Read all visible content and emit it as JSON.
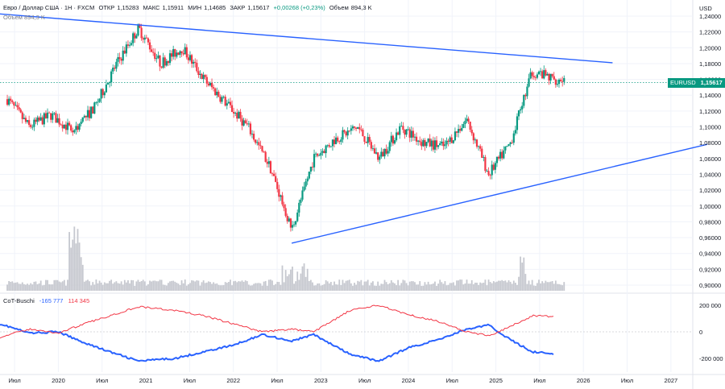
{
  "header": {
    "symbol": "Евро / Доллар США · 1Н · FXCM",
    "open_label": "ОТКР",
    "open": "1,15283",
    "high_label": "МАКС",
    "high": "1,15911",
    "low_label": "МИН",
    "low": "1,14685",
    "close_label": "ЗАКР",
    "close": "1,15617",
    "change": "+0,00268 (+0,23%)",
    "volume_label": "Объем",
    "volume": "894,3 K",
    "volume_sub_label": "Объем",
    "volume_sub": "894,3 K"
  },
  "price_axis": {
    "currency": "USD",
    "ticks": [
      "1,24000",
      "1,22000",
      "1,20000",
      "1,18000",
      "1,16000",
      "1,14000",
      "1,12000",
      "1,10000",
      "1,08000",
      "1,06000",
      "1,04000",
      "1,02000",
      "1,00000",
      "0,98000",
      "0,96000",
      "0,94000",
      "0,92000",
      "0,90000"
    ]
  },
  "price_tag": {
    "symbol": "EURUSD",
    "value": "1,15617"
  },
  "indicator": {
    "name": "CoT-Buschi",
    "value_blue": "-165 777",
    "value_red": "114 345",
    "ticks": [
      "200000",
      "0",
      "-200000"
    ]
  },
  "time_axis": [
    "Июл",
    "2020",
    "Июл",
    "2021",
    "Июл",
    "2022",
    "Июл",
    "2023",
    "Июл",
    "2024",
    "Июл",
    "2025",
    "Июл",
    "2026",
    "Июл",
    "2027"
  ],
  "colors": {
    "up": "#089981",
    "down": "#f23645",
    "trend": "#2962ff",
    "cot_blue": "#2962ff",
    "cot_red": "#f23645",
    "price_line": "#089981"
  },
  "chart_data": {
    "type": "candlestick",
    "title": "Евро / Доллар США · 1Н · FXCM",
    "ylim": [
      0.9,
      1.24
    ],
    "x_range": [
      "2019-05",
      "2027-04"
    ],
    "last_close": 1.15617,
    "series": [
      {
        "name": "EURUSD",
        "x": [
          "2019-06",
          "2019-09",
          "2019-12",
          "2020-03",
          "2020-06",
          "2020-09",
          "2020-12",
          "2021-03",
          "2021-06",
          "2021-09",
          "2021-12",
          "2022-03",
          "2022-06",
          "2022-09",
          "2022-12",
          "2023-03",
          "2023-06",
          "2023-09",
          "2023-12",
          "2024-03",
          "2024-06",
          "2024-09",
          "2024-12",
          "2025-03",
          "2025-06",
          "2025-09"
        ],
        "values": [
          1.135,
          1.1,
          1.115,
          1.095,
          1.125,
          1.18,
          1.225,
          1.18,
          1.2,
          1.16,
          1.13,
          1.1,
          1.05,
          0.97,
          1.06,
          1.085,
          1.1,
          1.06,
          1.1,
          1.08,
          1.075,
          1.11,
          1.04,
          1.08,
          1.17,
          1.16
        ]
      }
    ],
    "volume": {
      "label": "Объем",
      "last": "894,3 K"
    },
    "trendlines": [
      {
        "name": "upper",
        "from": [
          "2019-04",
          1.2435
        ],
        "to": [
          "2026-05",
          1.181
        ]
      },
      {
        "name": "lower",
        "from": [
          "2022-09",
          0.953
        ],
        "to": [
          "2027-06",
          1.078
        ]
      }
    ],
    "cot": {
      "name": "CoT-Buschi",
      "ylim": [
        -280000,
        280000
      ],
      "ticks": [
        200000,
        0,
        -200000
      ],
      "x": [
        "2019-05",
        "2019-09",
        "2020-01",
        "2020-04",
        "2020-08",
        "2020-12",
        "2021-05",
        "2021-09",
        "2022-01",
        "2022-05",
        "2022-09",
        "2022-12",
        "2023-05",
        "2023-09",
        "2024-01",
        "2024-05",
        "2024-09",
        "2024-12",
        "2025-03",
        "2025-06",
        "2025-09"
      ],
      "series": [
        {
          "name": "CoT blue",
          "last": -165777,
          "values": [
            60000,
            -10000,
            0,
            -70000,
            -150000,
            -220000,
            -200000,
            -150000,
            -100000,
            -20000,
            -70000,
            -20000,
            -170000,
            -220000,
            -120000,
            -60000,
            20000,
            50000,
            -60000,
            -150000,
            -165777
          ]
        },
        {
          "name": "CoT red",
          "last": 114345,
          "values": [
            -40000,
            20000,
            -10000,
            50000,
            120000,
            190000,
            160000,
            120000,
            60000,
            0,
            20000,
            0,
            160000,
            200000,
            130000,
            80000,
            0,
            -30000,
            40000,
            120000,
            114345
          ]
        }
      ]
    }
  }
}
